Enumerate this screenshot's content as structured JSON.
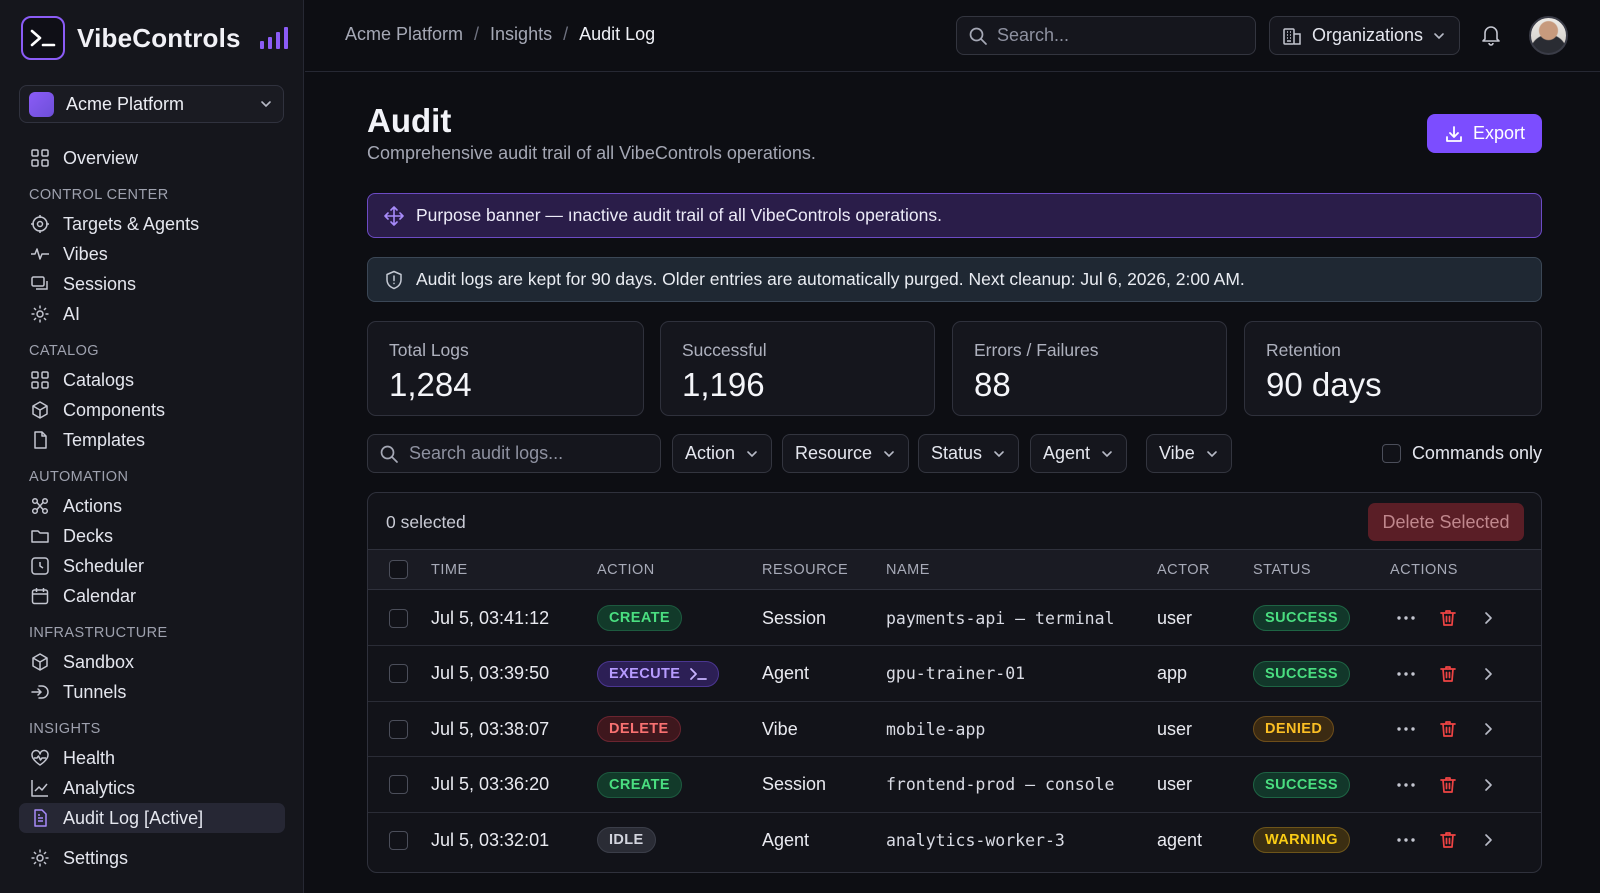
{
  "brand": {
    "name": "VibeControls"
  },
  "org_switcher": {
    "name": "Acme Platform"
  },
  "nav": {
    "overview": "Overview",
    "sections": {
      "control_center": "CONTROL CENTER",
      "catalog": "CATALOG",
      "automation": "AUTOMATION",
      "infrastructure": "INFRASTRUCTURE",
      "insights": "INSIGHTS"
    },
    "items": {
      "targets_agents": "Targets & Agents",
      "vibes": "Vibes",
      "sessions": "Sessions",
      "ai": "AI",
      "catalogs": "Catalogs",
      "components": "Components",
      "templates": "Templates",
      "actions": "Actions",
      "decks": "Decks",
      "scheduler": "Scheduler",
      "calendar": "Calendar",
      "sandbox": "Sandbox",
      "tunnels": "Tunnels",
      "health": "Health",
      "analytics": "Analytics",
      "audit_log": "Audit Log [Active]"
    },
    "settings": "Settings"
  },
  "topbar": {
    "breadcrumb": [
      "Acme Platform",
      "Insights",
      "Audit Log"
    ],
    "search_placeholder": "Search...",
    "organizations_label": "Organizations"
  },
  "page": {
    "title": "Audit",
    "subtitle": "Comprehensive audit trail of all VibeControls operations.",
    "export_label": "Export",
    "purpose_banner": "Purpose banner — ınactive audit trail of all VibeControls operations.",
    "retention_banner": "Audit logs are kept for 90 days. Older entries are automatically purged. Next cleanup: Jul 6, 2026, 2:00 AM."
  },
  "stats": [
    {
      "label": "Total Logs",
      "value": "1,284"
    },
    {
      "label": "Successful",
      "value": "1,196"
    },
    {
      "label": "Errors / Failures",
      "value": "88"
    },
    {
      "label": "Retention",
      "value": "90 days"
    }
  ],
  "filters": {
    "search_placeholder": "Search audit logs...",
    "dropdowns": [
      "Action",
      "Resource",
      "Status",
      "Agent",
      "Vibe"
    ],
    "commands_only_label": "Commands only",
    "commands_only_checked": false
  },
  "table": {
    "selected_text": "0 selected",
    "delete_selected_label": "Delete Selected",
    "columns": [
      "TIME",
      "ACTION",
      "RESOURCE",
      "NAME",
      "ACTOR",
      "STATUS",
      "ACTIONS"
    ],
    "rows": [
      {
        "time": "Jul 5, 03:41:12",
        "action": "CREATE",
        "resource": "Session",
        "name": "payments-api — terminal",
        "actor": "user",
        "status": "SUCCESS"
      },
      {
        "time": "Jul 5, 03:39:50",
        "action": "EXECUTE",
        "resource": "Agent",
        "name": "gpu-trainer-01",
        "actor": "app",
        "status": "SUCCESS"
      },
      {
        "time": "Jul 5, 03:38:07",
        "action": "DELETE",
        "resource": "Vibe",
        "name": "mobile-app",
        "actor": "user",
        "status": "DENIED"
      },
      {
        "time": "Jul 5, 03:36:20",
        "action": "CREATE",
        "resource": "Session",
        "name": "frontend-prod — console",
        "actor": "user",
        "status": "SUCCESS"
      },
      {
        "time": "Jul 5, 03:32:01",
        "action": "IDLE",
        "resource": "Agent",
        "name": "analytics-worker-3",
        "actor": "agent",
        "status": "WARNING"
      }
    ]
  },
  "colors": {
    "accent": "#7c4dff",
    "success": "#4ade80",
    "danger": "#f87171",
    "warning": "#fbbf24"
  }
}
